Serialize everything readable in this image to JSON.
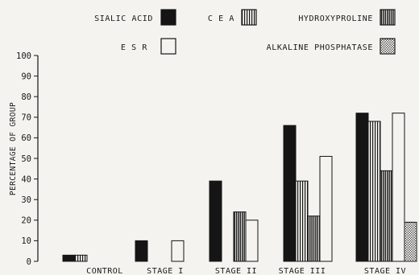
{
  "chart_data": {
    "type": "bar",
    "ylabel": "PERCENTAGE OF GROUP",
    "ylim": [
      0,
      100
    ],
    "yticks": [
      0,
      10,
      20,
      30,
      40,
      50,
      60,
      70,
      80,
      90,
      100
    ],
    "categories": [
      "CONTROL",
      "STAGE I",
      "STAGE II",
      "STAGE III",
      "STAGE IV"
    ],
    "series": [
      {
        "name": "SIALIC ACID",
        "pattern": "solid",
        "values": [
          3,
          10,
          39,
          66,
          72
        ]
      },
      {
        "name": "C E A",
        "pattern": "vstripe",
        "values": [
          3,
          0,
          0,
          39,
          68
        ]
      },
      {
        "name": "HYDROXYPROLINE",
        "pattern": "vstripe-dense",
        "values": [
          0,
          0,
          24,
          22,
          44
        ]
      },
      {
        "name": "E S R",
        "pattern": "open",
        "values": [
          0,
          10,
          20,
          51,
          72
        ]
      },
      {
        "name": "ALKALINE PHOSPHATASE",
        "pattern": "dots",
        "values": [
          0,
          0,
          0,
          0,
          19
        ]
      }
    ],
    "legend_position": "top",
    "grid": false,
    "colors": {
      "ink": "#151515",
      "paper": "#f4f3ef"
    }
  }
}
